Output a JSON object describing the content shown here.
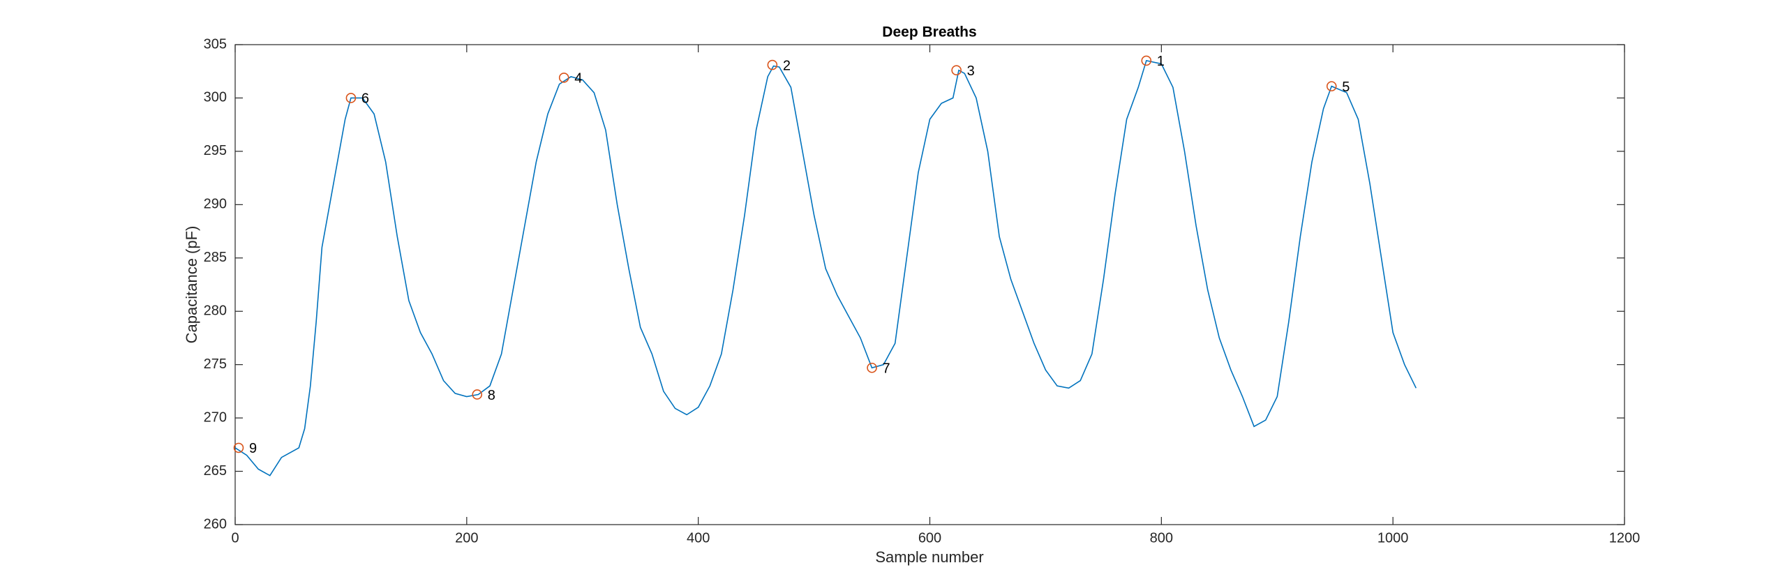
{
  "chart_data": {
    "type": "line",
    "title": "Deep Breaths",
    "x_label": "Sample number",
    "y_label": "Capacitance (pF)",
    "xlim": [
      0,
      1200
    ],
    "xticks": [
      0,
      200,
      400,
      600,
      800,
      1000,
      1200
    ],
    "ylim": [
      260,
      305
    ],
    "yticks": [
      260,
      265,
      270,
      275,
      280,
      285,
      290,
      295,
      300,
      305
    ],
    "color": "#0072bd",
    "x": [
      0,
      10,
      20,
      30,
      40,
      55,
      60,
      65,
      70,
      75,
      85,
      95,
      100,
      110,
      120,
      130,
      140,
      150,
      160,
      170,
      180,
      190,
      200,
      210,
      220,
      230,
      240,
      250,
      260,
      270,
      280,
      290,
      300,
      310,
      320,
      330,
      340,
      350,
      360,
      370,
      380,
      390,
      400,
      410,
      420,
      430,
      440,
      450,
      460,
      465,
      470,
      480,
      490,
      500,
      510,
      520,
      530,
      540,
      550,
      560,
      570,
      580,
      590,
      600,
      610,
      620,
      625,
      630,
      640,
      650,
      660,
      670,
      680,
      690,
      700,
      710,
      720,
      730,
      740,
      750,
      760,
      770,
      780,
      787,
      800,
      810,
      820,
      830,
      840,
      850,
      860,
      870,
      880,
      890,
      900,
      910,
      920,
      930,
      940,
      947,
      960,
      970,
      980,
      990,
      1000,
      1010,
      1020
    ],
    "values": [
      267.2,
      266.5,
      265.2,
      264.6,
      266.3,
      267.2,
      269,
      273,
      279,
      286,
      292,
      298,
      300,
      300,
      298.5,
      294,
      287,
      281,
      278,
      276,
      273.5,
      272.3,
      272,
      272.2,
      273,
      276,
      282,
      288,
      294,
      298.5,
      301.3,
      302,
      301.7,
      300.5,
      297,
      290,
      284,
      278.5,
      276,
      272.5,
      270.9,
      270.3,
      271,
      273,
      276,
      282,
      289,
      297,
      302,
      303,
      302.9,
      301,
      295,
      289,
      284,
      281.5,
      279.5,
      277.5,
      274.7,
      275,
      277,
      285,
      293,
      298,
      299.5,
      300,
      302.6,
      302.3,
      300,
      295,
      287,
      283,
      280,
      277,
      274.5,
      273,
      272.8,
      273.5,
      276,
      283,
      291,
      298,
      301,
      303.5,
      303.2,
      301,
      295,
      288,
      282,
      277.5,
      274.5,
      272,
      269.2,
      269.8,
      272,
      279,
      287,
      294,
      299,
      301.1,
      300.5,
      298,
      292,
      285,
      278,
      275,
      272.8
    ],
    "peaks": {
      "color": "#d95319",
      "x": [
        787,
        464,
        623,
        284,
        947,
        100,
        550,
        209,
        3
      ],
      "values": [
        303.5,
        303.1,
        302.6,
        301.9,
        301.1,
        300,
        274.7,
        272.2,
        267.2
      ],
      "labels": [
        "1",
        "2",
        "3",
        "4",
        "5",
        "6",
        "7",
        "8",
        "9"
      ]
    }
  }
}
